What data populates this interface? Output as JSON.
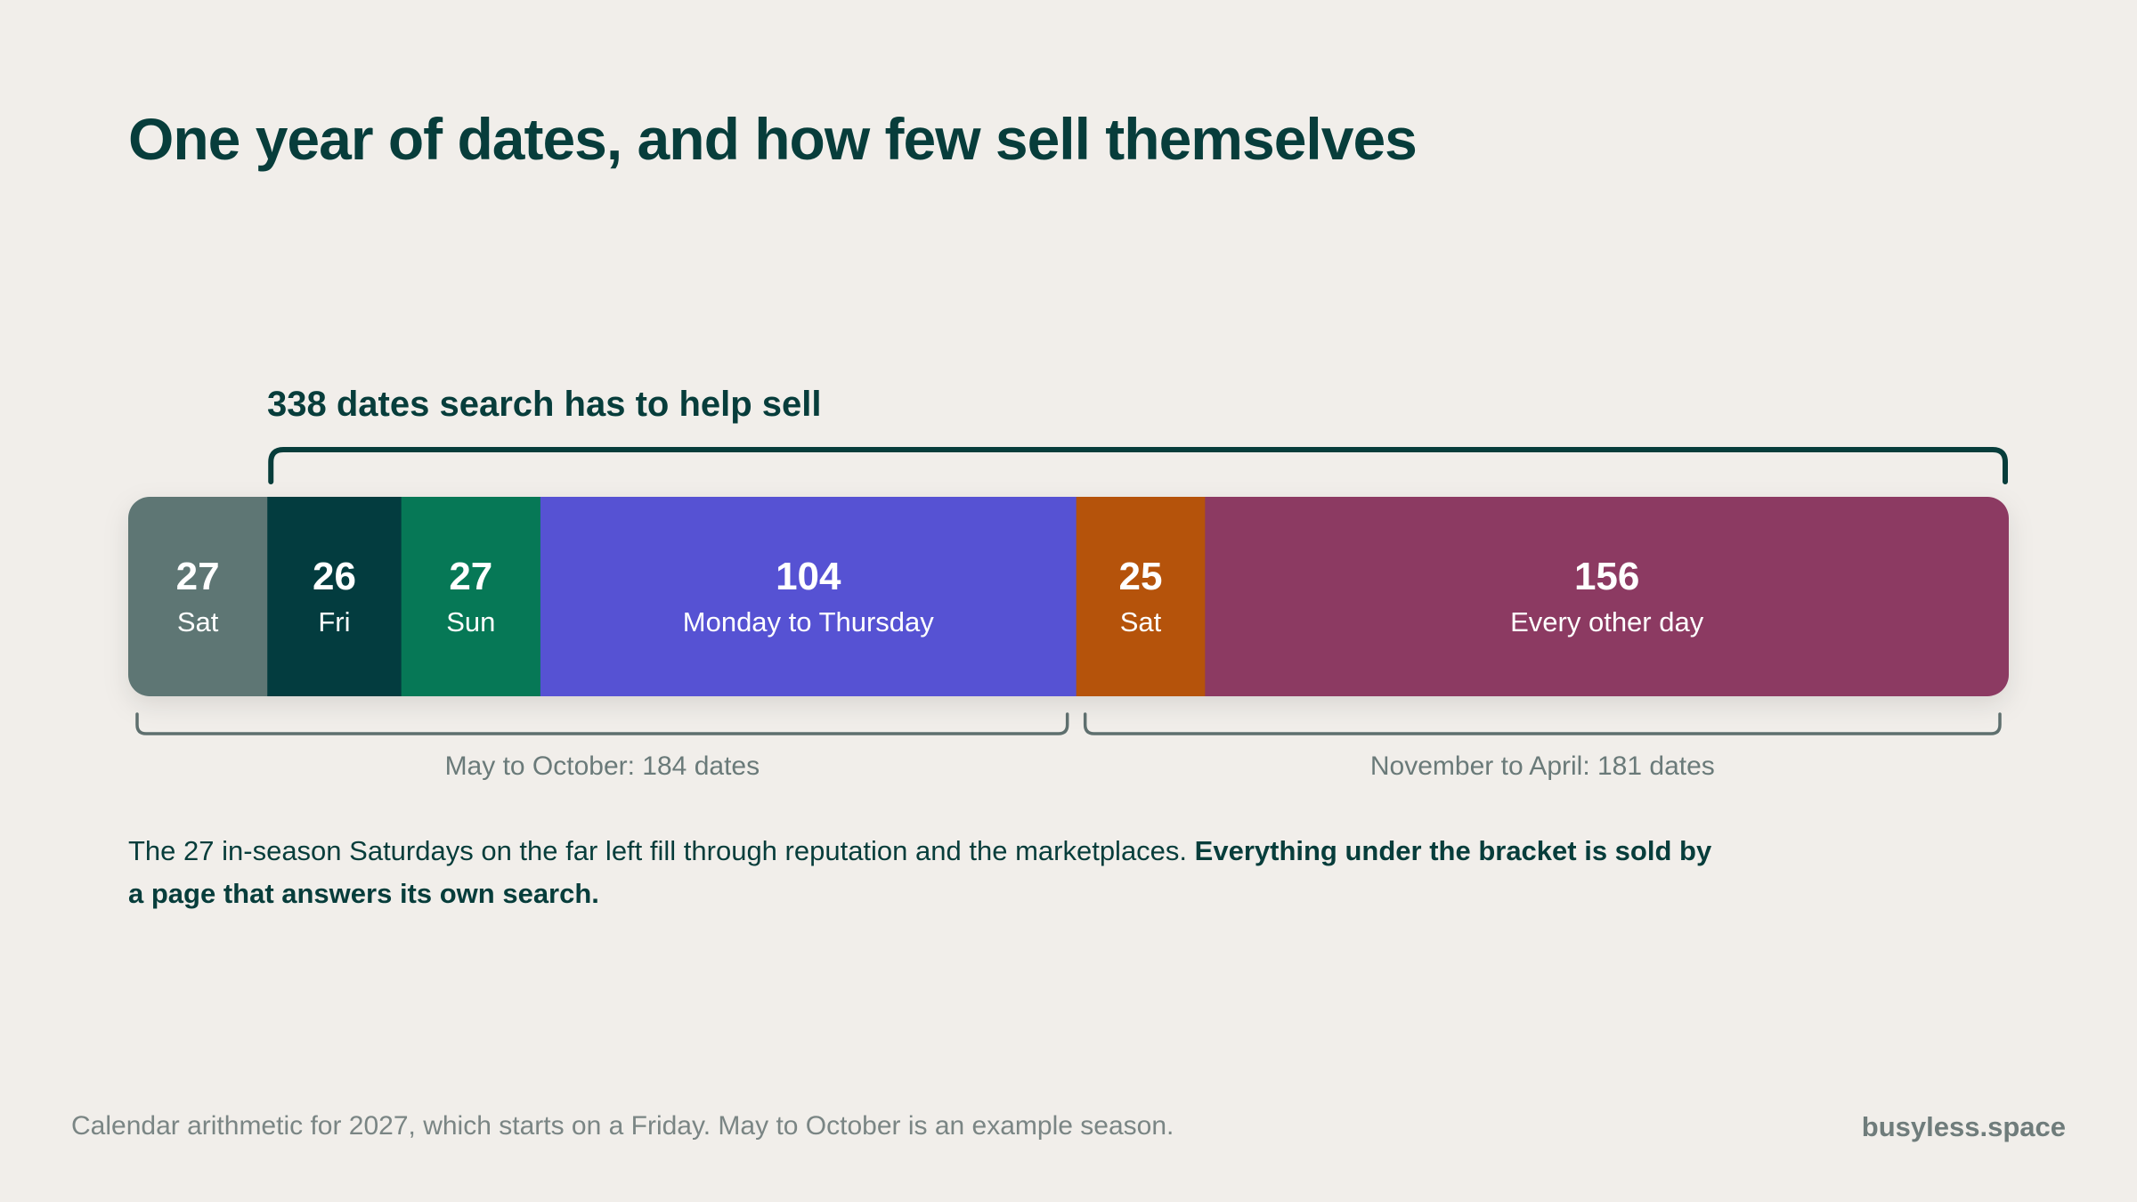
{
  "title": "One year of dates, and how few sell themselves",
  "chart_data": {
    "type": "bar",
    "orientation": "horizontal-stacked",
    "segments": [
      {
        "value": 27,
        "label": "Sat",
        "color": "#5e7674"
      },
      {
        "value": 26,
        "label": "Fri",
        "color": "#033c3f"
      },
      {
        "value": 27,
        "label": "Sun",
        "color": "#067856"
      },
      {
        "value": 104,
        "label": "Monday to Thursday",
        "color": "#5652d3"
      },
      {
        "value": 25,
        "label": "Sat",
        "color": "#b5530b"
      },
      {
        "value": 156,
        "label": "Every other day",
        "color": "#8c3a62"
      }
    ],
    "top_bracket": {
      "label": "338 dates search has to help sell",
      "from_segment": 1,
      "to_segment": 5,
      "color": "#073d3b"
    },
    "bottom_brackets": [
      {
        "label": "May to October: 184 dates",
        "from_segment": 0,
        "to_segment": 3
      },
      {
        "label": "November to April: 181 dates",
        "from_segment": 4,
        "to_segment": 5
      }
    ],
    "bracket_color": "#5e6f6e"
  },
  "note": {
    "plain": "The 27 in-season Saturdays on the far left fill through reputation and the marketplaces. ",
    "bold": "Everything under the bracket is sold by a page that answers its own search."
  },
  "footer": {
    "note": "Calendar arithmetic for 2027, which starts on a Friday. May to October is an example season.",
    "brand": "busyless.space"
  }
}
